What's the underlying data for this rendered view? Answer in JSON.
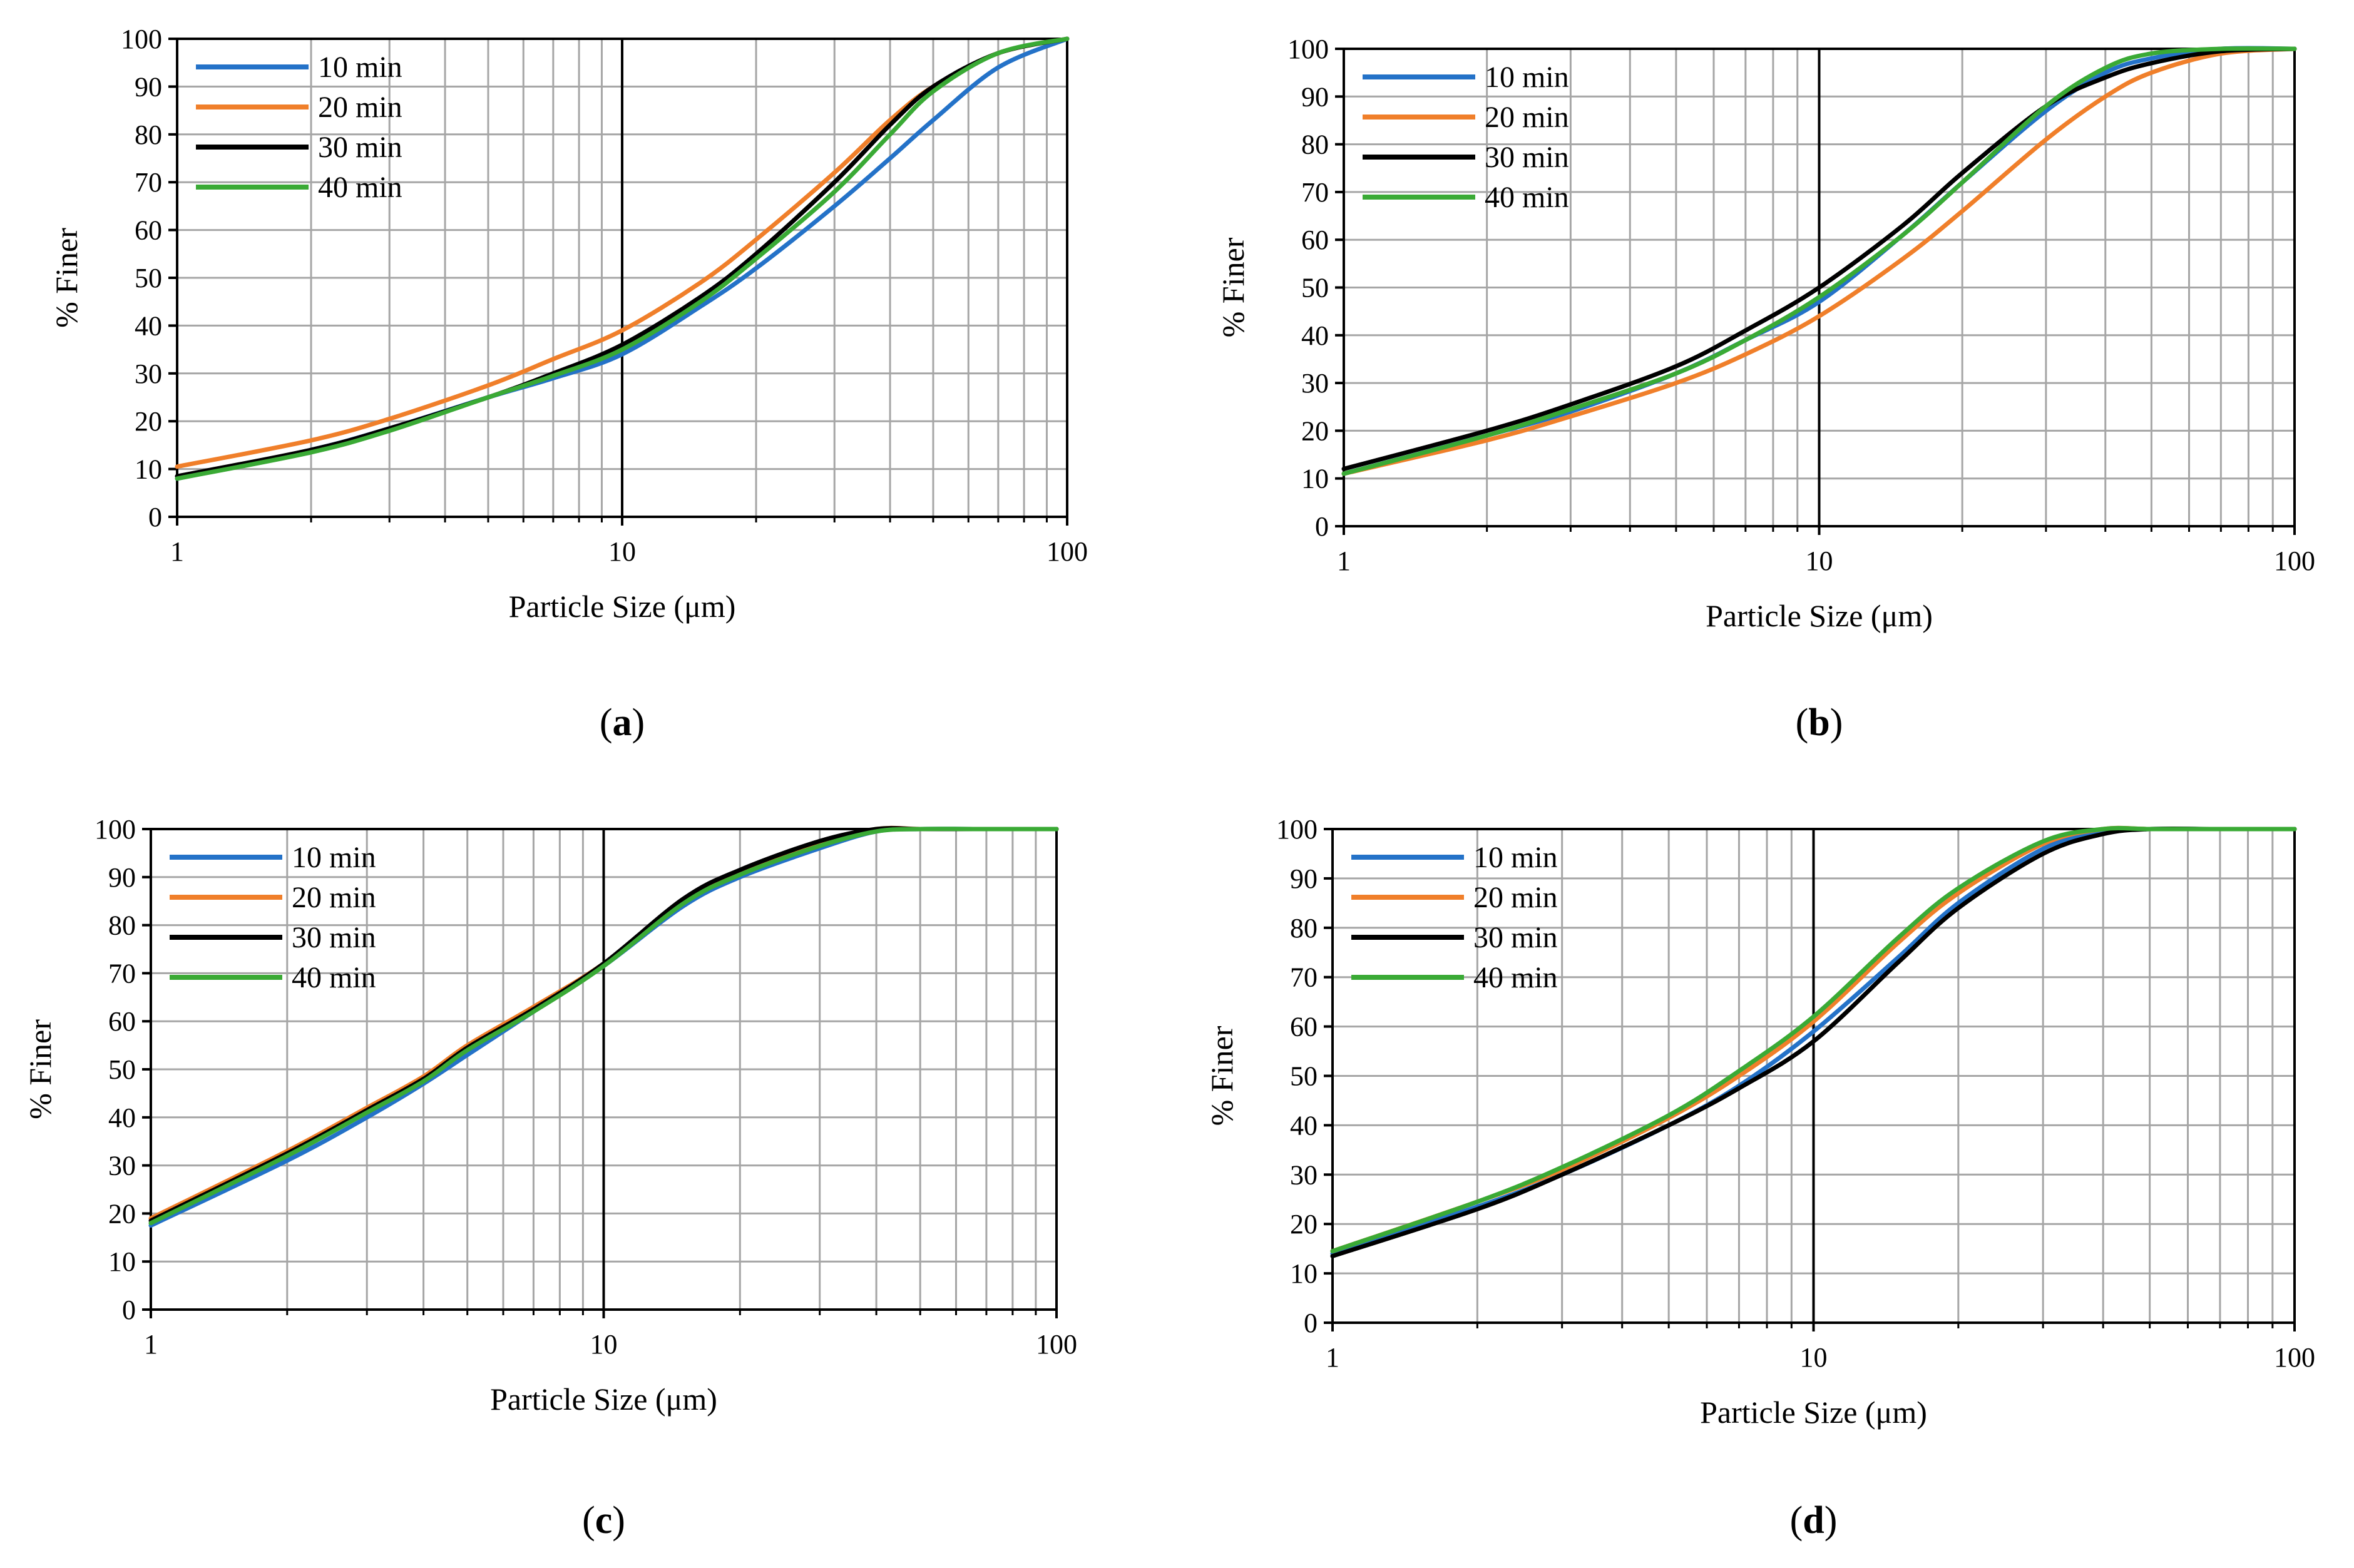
{
  "colors": {
    "10 min": "#2472c8",
    "20 min": "#f07f2a",
    "30 min": "#000000",
    "40 min": "#3aaa35",
    "grid": "#a6a6a6"
  },
  "chart_data": [
    {
      "panel_label": "a",
      "type": "line",
      "xscale": "log",
      "xlim": [
        1,
        100
      ],
      "ylim": [
        0,
        100
      ],
      "xticks": [
        "1",
        "10",
        "100"
      ],
      "yticks": [
        "0",
        "10",
        "20",
        "30",
        "40",
        "50",
        "60",
        "70",
        "80",
        "90",
        "100"
      ],
      "xlabel": "Particle Size (μm)",
      "ylabel": "% Finer",
      "grid": true,
      "legend": "top-left",
      "series": [
        {
          "name": "10 min",
          "x": [
            1,
            2,
            3,
            5,
            7,
            10,
            15,
            20,
            30,
            40,
            50,
            70,
            100
          ],
          "values": [
            8,
            14,
            18.5,
            25,
            29,
            34,
            44,
            52,
            65,
            75,
            83,
            94,
            100
          ]
        },
        {
          "name": "20 min",
          "x": [
            1,
            2,
            3,
            5,
            7,
            10,
            15,
            20,
            30,
            40,
            50,
            70,
            100
          ],
          "values": [
            10.5,
            16,
            20.5,
            27.5,
            33,
            39,
            49,
            58,
            72,
            83,
            90,
            97,
            100
          ]
        },
        {
          "name": "30 min",
          "x": [
            1,
            2,
            3,
            5,
            7,
            10,
            15,
            20,
            30,
            40,
            50,
            70,
            100
          ],
          "values": [
            8.5,
            14,
            18.5,
            25,
            30,
            36,
            46,
            55,
            70,
            82,
            90,
            97,
            100
          ]
        },
        {
          "name": "40 min",
          "x": [
            1,
            2,
            3,
            5,
            7,
            10,
            15,
            20,
            30,
            40,
            50,
            70,
            100
          ],
          "values": [
            8,
            13.5,
            18,
            25,
            29.5,
            35,
            45,
            54,
            68,
            80,
            89,
            97,
            100
          ]
        }
      ]
    },
    {
      "panel_label": "b",
      "type": "line",
      "xscale": "log",
      "xlim": [
        1,
        100
      ],
      "ylim": [
        0,
        100
      ],
      "xticks": [
        "1",
        "10",
        "100"
      ],
      "yticks": [
        "0",
        "10",
        "20",
        "30",
        "40",
        "50",
        "60",
        "70",
        "80",
        "90",
        "100"
      ],
      "xlabel": "Particle Size (μm)",
      "ylabel": "% Finer",
      "grid": true,
      "legend": "top-left",
      "series": [
        {
          "name": "10 min",
          "x": [
            1,
            2,
            3,
            5,
            7,
            10,
            15,
            20,
            30,
            40,
            50,
            70,
            100
          ],
          "values": [
            11,
            19,
            24,
            32,
            39,
            47,
            61,
            72,
            87,
            95,
            98,
            100,
            100
          ]
        },
        {
          "name": "20 min",
          "x": [
            1,
            2,
            3,
            5,
            7,
            10,
            15,
            20,
            30,
            40,
            50,
            70,
            100
          ],
          "values": [
            11,
            18,
            23,
            30,
            36,
            44,
            56,
            66,
            81,
            90,
            95,
            99,
            100
          ]
        },
        {
          "name": "30 min",
          "x": [
            1,
            2,
            3,
            5,
            7,
            10,
            15,
            20,
            30,
            40,
            50,
            70,
            100
          ],
          "values": [
            12,
            20,
            25.5,
            33.5,
            41,
            50,
            63,
            74,
            88,
            94,
            97,
            99.5,
            100
          ]
        },
        {
          "name": "40 min",
          "x": [
            1,
            2,
            3,
            5,
            7,
            10,
            15,
            20,
            30,
            40,
            50,
            70,
            100
          ],
          "values": [
            11,
            19,
            24.5,
            32,
            39,
            48,
            61,
            72,
            88,
            96,
            99,
            100,
            100
          ]
        }
      ]
    },
    {
      "panel_label": "c",
      "type": "line",
      "xscale": "log",
      "xlim": [
        1,
        100
      ],
      "ylim": [
        0,
        100
      ],
      "xticks": [
        "1",
        "10",
        "100"
      ],
      "yticks": [
        "0",
        "10",
        "20",
        "30",
        "40",
        "50",
        "60",
        "70",
        "80",
        "90",
        "100"
      ],
      "xlabel": "Particle Size (μm)",
      "ylabel": "% Finer",
      "grid": true,
      "legend": "top-left",
      "series": [
        {
          "name": "10 min",
          "x": [
            1,
            2,
            3,
            4,
            5,
            7,
            10,
            15,
            20,
            30,
            40,
            50,
            70,
            100
          ],
          "values": [
            17.5,
            31,
            40,
            47,
            53,
            62,
            71.5,
            84,
            90,
            96,
            99.5,
            100,
            100,
            100
          ]
        },
        {
          "name": "20 min",
          "x": [
            1,
            2,
            3,
            4,
            5,
            7,
            10,
            15,
            20,
            30,
            40,
            50,
            70,
            100
          ],
          "values": [
            19,
            33,
            42,
            48.5,
            55,
            63,
            72,
            85,
            91,
            97,
            100,
            100,
            100,
            100
          ]
        },
        {
          "name": "30 min",
          "x": [
            1,
            2,
            3,
            4,
            5,
            7,
            10,
            15,
            20,
            30,
            40,
            50,
            70,
            100
          ],
          "values": [
            18.5,
            32.5,
            41.5,
            48,
            54.5,
            62.5,
            72,
            85.5,
            91.5,
            97.5,
            100,
            100,
            100,
            100
          ]
        },
        {
          "name": "40 min",
          "x": [
            1,
            2,
            3,
            4,
            5,
            7,
            10,
            15,
            20,
            30,
            40,
            50,
            70,
            100
          ],
          "values": [
            18,
            32,
            41,
            47.5,
            54,
            62,
            71.5,
            84.5,
            90.5,
            96.5,
            99.5,
            100,
            100,
            100
          ]
        }
      ]
    },
    {
      "panel_label": "d",
      "type": "line",
      "xscale": "log",
      "xlim": [
        1,
        100
      ],
      "ylim": [
        0,
        100
      ],
      "xticks": [
        "1",
        "10",
        "100"
      ],
      "yticks": [
        "0",
        "10",
        "20",
        "30",
        "40",
        "50",
        "60",
        "70",
        "80",
        "90",
        "100"
      ],
      "xlabel": "Particle Size (μm)",
      "ylabel": "% Finer",
      "grid": true,
      "legend": "top-left",
      "series": [
        {
          "name": "10 min",
          "x": [
            1,
            2,
            3,
            5,
            7,
            10,
            15,
            20,
            30,
            40,
            50,
            70,
            100
          ],
          "values": [
            14,
            23.5,
            30,
            40,
            48,
            59,
            74,
            85,
            96,
            99.5,
            100,
            100,
            100
          ]
        },
        {
          "name": "20 min",
          "x": [
            1,
            2,
            3,
            5,
            7,
            10,
            15,
            20,
            30,
            40,
            50,
            70,
            100
          ],
          "values": [
            14.5,
            24.5,
            31,
            41.5,
            50,
            61,
            77,
            87,
            97,
            100,
            100,
            100,
            100
          ]
        },
        {
          "name": "30 min",
          "x": [
            1,
            2,
            3,
            5,
            7,
            10,
            15,
            20,
            30,
            40,
            50,
            70,
            100
          ],
          "values": [
            13.5,
            23,
            30,
            40,
            47.5,
            57,
            73,
            84,
            95,
            99,
            100,
            100,
            100
          ]
        },
        {
          "name": "40 min",
          "x": [
            1,
            2,
            3,
            5,
            7,
            10,
            15,
            20,
            30,
            40,
            50,
            70,
            100
          ],
          "values": [
            14.5,
            24.5,
            31.5,
            42,
            51,
            62,
            78,
            88,
            97.5,
            100,
            100,
            100,
            100
          ]
        }
      ]
    }
  ]
}
